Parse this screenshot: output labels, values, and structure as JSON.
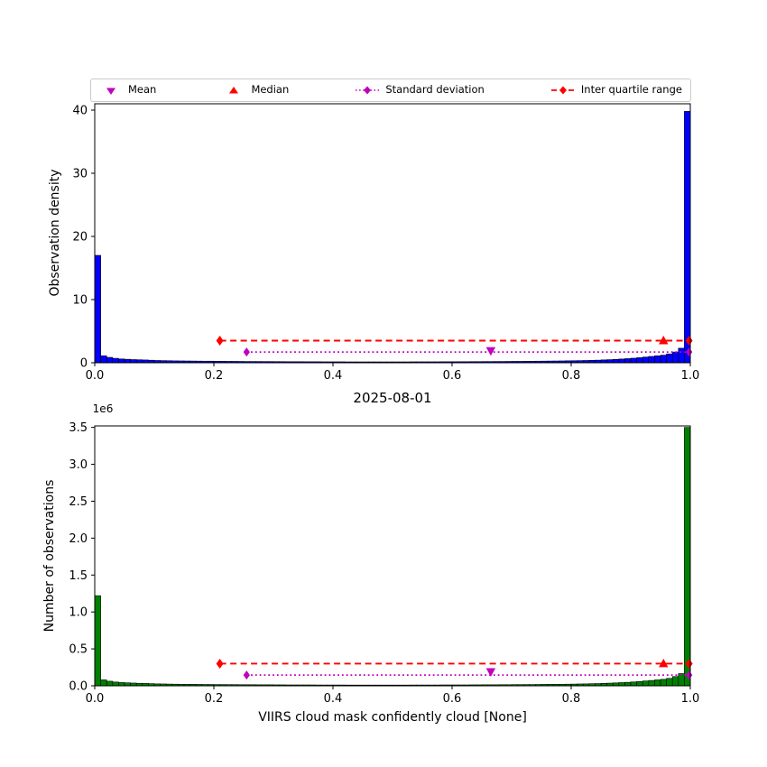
{
  "colors": {
    "density_bar": "#0000ff",
    "count_bar": "#008000",
    "mean": "#bf00bf",
    "median": "#ff0000",
    "std": "#bf00bf",
    "iqr": "#ff0000",
    "axis": "#000000"
  },
  "figure": {
    "title": "2025-08-01",
    "xlabel": "VIIRS cloud mask confidently cloud [None]",
    "top_ylabel": "Observation density",
    "bottom_ylabel": "Number of observations",
    "y_offset_text": "1e6"
  },
  "legend": {
    "items": [
      {
        "label": "Mean"
      },
      {
        "label": "Median"
      },
      {
        "label": "Standard deviation"
      },
      {
        "label": "Inter quartile range"
      }
    ]
  },
  "chart_data": [
    {
      "name": "observation-density-histogram",
      "type": "bar",
      "ylabel": "Observation density",
      "bar_color_key": "density_bar",
      "bin_start": 0,
      "bin_width": 0.01,
      "xlim": [
        0,
        1
      ],
      "ylim": [
        0,
        41
      ],
      "xticks": [
        0,
        0.2,
        0.4,
        0.6,
        0.8,
        1.0
      ],
      "xtick_labels": [
        "0.0",
        "0.2",
        "0.4",
        "0.6",
        "0.8",
        "1.0"
      ],
      "yticks": [
        0,
        10,
        20,
        30,
        40
      ],
      "ytick_labels": [
        "0",
        "10",
        "20",
        "30",
        "40"
      ],
      "values": [
        17.0,
        1.1,
        0.85,
        0.7,
        0.6,
        0.55,
        0.5,
        0.47,
        0.44,
        0.4,
        0.36,
        0.34,
        0.32,
        0.3,
        0.29,
        0.28,
        0.27,
        0.26,
        0.25,
        0.25,
        0.24,
        0.23,
        0.22,
        0.22,
        0.21,
        0.2,
        0.2,
        0.2,
        0.19,
        0.19,
        0.18,
        0.18,
        0.17,
        0.17,
        0.17,
        0.16,
        0.16,
        0.16,
        0.15,
        0.15,
        0.15,
        0.15,
        0.14,
        0.14,
        0.14,
        0.14,
        0.14,
        0.14,
        0.14,
        0.14,
        0.14,
        0.14,
        0.14,
        0.15,
        0.15,
        0.15,
        0.15,
        0.15,
        0.16,
        0.16,
        0.16,
        0.17,
        0.17,
        0.18,
        0.18,
        0.19,
        0.19,
        0.2,
        0.2,
        0.21,
        0.22,
        0.22,
        0.23,
        0.24,
        0.25,
        0.26,
        0.27,
        0.28,
        0.29,
        0.31,
        0.32,
        0.34,
        0.36,
        0.38,
        0.41,
        0.45,
        0.49,
        0.54,
        0.59,
        0.65,
        0.72,
        0.8,
        0.9,
        1.0,
        1.1,
        1.2,
        1.4,
        1.7,
        2.3,
        39.8
      ],
      "annotations": {
        "mean": {
          "x": 0.665,
          "y": 1.9
        },
        "median": {
          "x": 0.955,
          "y": 3.5
        },
        "std": {
          "x_start": 0.255,
          "x_end": 0.998,
          "y": 1.7
        },
        "iqr": {
          "x_start": 0.21,
          "x_end": 0.998,
          "y": 3.5
        }
      }
    },
    {
      "name": "observation-count-histogram",
      "type": "bar",
      "title": "2025-08-01",
      "xlabel": "VIIRS cloud mask confidently cloud [None]",
      "ylabel": "Number of observations",
      "y_unit": "1e6",
      "bar_color_key": "count_bar",
      "bin_start": 0,
      "bin_width": 0.01,
      "xlim": [
        0,
        1
      ],
      "ylim": [
        0,
        3.52
      ],
      "xticks": [
        0,
        0.2,
        0.4,
        0.6,
        0.8,
        1.0
      ],
      "xtick_labels": [
        "0.0",
        "0.2",
        "0.4",
        "0.6",
        "0.8",
        "1.0"
      ],
      "yticks": [
        0,
        0.5,
        1.0,
        1.5,
        2.0,
        2.5,
        3.0,
        3.5
      ],
      "ytick_labels": [
        "0.0",
        "0.5",
        "1.0",
        "1.5",
        "2.0",
        "2.5",
        "3.0",
        "3.5"
      ],
      "values": [
        1.22,
        0.08,
        0.062,
        0.051,
        0.044,
        0.04,
        0.037,
        0.034,
        0.032,
        0.029,
        0.026,
        0.025,
        0.023,
        0.022,
        0.021,
        0.02,
        0.02,
        0.019,
        0.018,
        0.018,
        0.017,
        0.017,
        0.016,
        0.016,
        0.015,
        0.015,
        0.015,
        0.014,
        0.014,
        0.014,
        0.013,
        0.013,
        0.012,
        0.012,
        0.012,
        0.012,
        0.012,
        0.011,
        0.011,
        0.011,
        0.011,
        0.011,
        0.01,
        0.01,
        0.01,
        0.01,
        0.01,
        0.01,
        0.01,
        0.01,
        0.01,
        0.01,
        0.01,
        0.011,
        0.011,
        0.011,
        0.011,
        0.011,
        0.012,
        0.012,
        0.012,
        0.012,
        0.012,
        0.013,
        0.013,
        0.014,
        0.014,
        0.014,
        0.015,
        0.015,
        0.016,
        0.016,
        0.017,
        0.017,
        0.018,
        0.019,
        0.02,
        0.02,
        0.021,
        0.022,
        0.023,
        0.025,
        0.026,
        0.028,
        0.03,
        0.033,
        0.036,
        0.039,
        0.043,
        0.047,
        0.052,
        0.058,
        0.065,
        0.072,
        0.08,
        0.087,
        0.1,
        0.125,
        0.165,
        3.5
      ],
      "annotations": {
        "mean": {
          "x": 0.665,
          "y": 0.19
        },
        "median": {
          "x": 0.955,
          "y": 0.3
        },
        "std": {
          "x_start": 0.255,
          "x_end": 0.998,
          "y": 0.145
        },
        "iqr": {
          "x_start": 0.21,
          "x_end": 0.998,
          "y": 0.3
        }
      }
    }
  ]
}
